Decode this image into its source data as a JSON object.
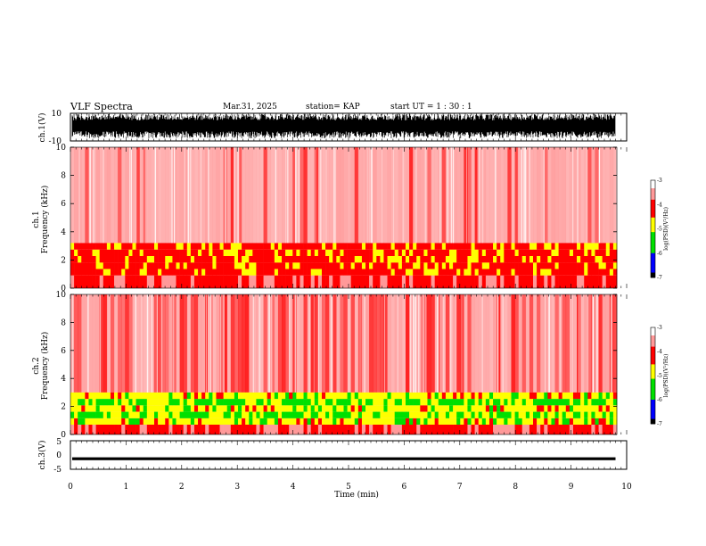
{
  "header": {
    "title": "VLF Spectra",
    "date": "Mar.31, 2025",
    "station": "station= KAP",
    "start": "start  UT =   1 : 30 : 1"
  },
  "colors": {
    "spectrogram_scale": [
      "#ffffff",
      "#ff9999",
      "#ff0000",
      "#ffff00",
      "#00e000",
      "#0000ff",
      "#000000"
    ],
    "waveform": "#000000"
  },
  "chart_data": [
    {
      "type": "line",
      "panel": "ch1-waveform",
      "ylabel": "ch.1(V)",
      "ylim": [
        -10,
        10
      ],
      "yticks": [
        "10",
        "-10"
      ],
      "xlim": [
        0,
        10
      ],
      "note_values": "dense oscillating waveform filling roughly -7 to +9 V"
    },
    {
      "type": "heatmap",
      "panel": "ch1-spectrogram",
      "ylabel": "ch.1\nFrequency  (kHz)",
      "ylabel_lines": [
        "ch.1",
        "Frequency  (kHz)"
      ],
      "ylim": [
        0,
        10
      ],
      "yticks": [
        "0",
        "2",
        "4",
        "6",
        "8",
        "10"
      ],
      "xlim": [
        0,
        10
      ],
      "colorbar": {
        "label": "log(PSD)(V²/Hz)",
        "range": [
          -7,
          -3
        ],
        "ticks": [
          "-3",
          "-4",
          "-5",
          "-6",
          "-7"
        ]
      },
      "bands": [
        {
          "from_khz": 0.9,
          "to_khz": 3.2,
          "level": -4.3
        },
        {
          "from_khz": 3.2,
          "to_khz": 10,
          "level": -3.6
        }
      ]
    },
    {
      "type": "heatmap",
      "panel": "ch2-spectrogram",
      "ylabel": "ch.2\nFrequency  (kHz)",
      "ylabel_lines": [
        "ch.2",
        "Frequency  (kHz)"
      ],
      "ylim": [
        0,
        10
      ],
      "yticks": [
        "0",
        "2",
        "4",
        "6",
        "8",
        "10"
      ],
      "xlim": [
        0,
        10
      ],
      "colorbar": {
        "label": "log(PSD)(V²/Hz)",
        "range": [
          -7,
          -3
        ],
        "ticks": [
          "-3",
          "-4",
          "-5",
          "-6",
          "-7"
        ]
      },
      "bands": [
        {
          "from_khz": 0.7,
          "to_khz": 3.0,
          "level": -4.8
        },
        {
          "from_khz": 3.0,
          "to_khz": 10,
          "level": -3.8
        }
      ]
    },
    {
      "type": "line",
      "panel": "ch3-waveform",
      "ylabel": "ch.3(V)",
      "ylim": [
        -5,
        5
      ],
      "yticks": [
        "5",
        "0",
        "-5"
      ],
      "xlim": [
        0,
        9.8
      ],
      "note_values": "flat thick trace centred near -1.3 V"
    }
  ],
  "xaxis": {
    "label": "Time  (min)",
    "ticks": [
      "0",
      "1",
      "2",
      "3",
      "4",
      "5",
      "6",
      "7",
      "8",
      "9",
      "10"
    ]
  }
}
